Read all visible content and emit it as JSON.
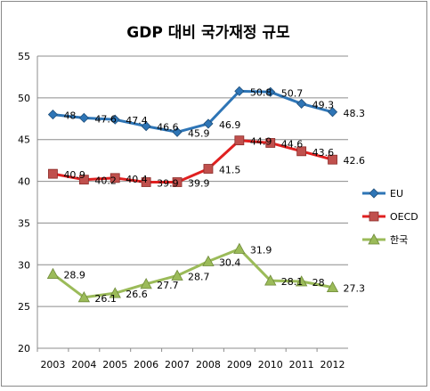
{
  "chart_data": {
    "type": "line",
    "title": "GDP 대비 국가재정 규모",
    "xlabel": "",
    "ylabel": "",
    "categories": [
      "2003",
      "2004",
      "2005",
      "2006",
      "2007",
      "2008",
      "2009",
      "2010",
      "2011",
      "2012"
    ],
    "ylim": [
      20,
      55
    ],
    "yticks": [
      "20",
      "25",
      "30",
      "35",
      "40",
      "45",
      "50",
      "55"
    ],
    "grid": "horizontal",
    "legend_position": "right",
    "series": [
      {
        "name": "EU",
        "color": "#2e75b6",
        "marker": "diamond",
        "values": [
          48,
          47.6,
          47.4,
          46.6,
          45.9,
          46.9,
          50.8,
          50.7,
          49.3,
          48.3
        ],
        "labels": [
          "48",
          "47.6",
          "47.4",
          "46.6",
          "45.9",
          "46.9",
          "50.8",
          "50.7",
          "49.3",
          "48.3"
        ]
      },
      {
        "name": "OECD",
        "color": "#e02020",
        "marker": "square",
        "values": [
          40.9,
          40.2,
          40.4,
          39.9,
          39.9,
          41.5,
          44.9,
          44.6,
          43.6,
          42.6
        ],
        "labels": [
          "40.9",
          "40.2",
          "40.4",
          "39.9",
          "39.9",
          "41.5",
          "44.9",
          "44.6",
          "43.6",
          "42.6"
        ]
      },
      {
        "name": "한국",
        "color": "#9bbb59",
        "marker": "triangle",
        "values": [
          28.9,
          26.1,
          26.6,
          27.7,
          28.7,
          30.4,
          31.9,
          28.1,
          28,
          27.3
        ],
        "labels": [
          "28.9",
          "26.1",
          "26.6",
          "27.7",
          "28.7",
          "30.4",
          "31.9",
          "28.1",
          "28",
          "27.3"
        ]
      }
    ]
  }
}
